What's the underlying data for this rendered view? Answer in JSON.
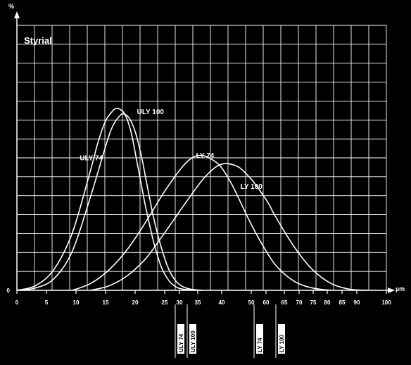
{
  "chart_data": {
    "type": "line",
    "title": "Styrial",
    "ylabel": "%",
    "xlabel": "µm",
    "xlim": [
      0,
      100
    ],
    "ylim": [
      0,
      23
    ],
    "grid": true,
    "x_ticks": [
      "0",
      "5",
      "10",
      "15",
      "20",
      "25",
      "30",
      "35",
      "40",
      "50",
      "60",
      "65",
      "70",
      "75",
      "80",
      "85",
      "90",
      "100"
    ],
    "y_ticks": [
      "0"
    ],
    "series": [
      {
        "name": "ULY 74",
        "label_x": 17.0,
        "label_y": 11.3,
        "x": [
          0,
          5,
          10,
          15,
          20,
          22,
          24,
          26,
          27,
          28,
          29,
          30,
          31,
          32,
          33,
          34,
          35,
          37,
          39,
          41,
          43,
          45,
          48
        ],
        "y": [
          0,
          0.4,
          1.8,
          5.0,
          10.5,
          12.9,
          14.7,
          15.6,
          15.8,
          15.7,
          15.4,
          14.7,
          13.6,
          12.0,
          10.3,
          8.6,
          7.0,
          4.2,
          2.1,
          0.9,
          0.3,
          0.1,
          0
        ]
      },
      {
        "name": "ULY 100",
        "label_x": 32.5,
        "label_y": 15.3,
        "x": [
          0,
          5,
          10,
          15,
          20,
          24,
          26,
          28,
          29,
          30,
          31,
          32,
          33,
          34,
          35,
          36,
          37,
          39,
          41,
          43,
          45,
          47,
          50
        ],
        "y": [
          0,
          0.2,
          1.0,
          3.4,
          8.2,
          12.5,
          14.3,
          15.2,
          15.3,
          15.1,
          14.6,
          13.8,
          12.6,
          11.2,
          9.5,
          7.9,
          6.3,
          3.8,
          1.9,
          0.8,
          0.3,
          0.1,
          0
        ]
      },
      {
        "name": "LY 74",
        "label_x": 48.5,
        "label_y": 11.5,
        "x": [
          15,
          20,
          25,
          30,
          35,
          40,
          45,
          48,
          50,
          52,
          55,
          58,
          60,
          63,
          66,
          70,
          75,
          80,
          85
        ],
        "y": [
          0,
          0.6,
          1.8,
          3.6,
          6.0,
          8.6,
          10.8,
          11.6,
          11.7,
          11.5,
          10.8,
          9.3,
          8.0,
          6.0,
          4.2,
          2.2,
          0.8,
          0.2,
          0
        ]
      },
      {
        "name": "LY 100",
        "label_x": 60.5,
        "label_y": 8.8,
        "x": [
          20,
          25,
          30,
          35,
          40,
          45,
          50,
          53,
          55,
          57,
          60,
          63,
          65,
          68,
          70,
          75,
          80,
          85,
          90,
          95
        ],
        "y": [
          0,
          0.4,
          1.3,
          2.8,
          5.0,
          7.3,
          9.5,
          10.5,
          10.9,
          11.0,
          10.7,
          9.8,
          9.0,
          7.6,
          6.4,
          3.8,
          1.8,
          0.6,
          0.1,
          0
        ]
      }
    ],
    "markers": [
      {
        "x": 28,
        "labels": [
          "ULY 74"
        ]
      },
      {
        "x": 30,
        "labels": [
          "ULY 100"
        ]
      },
      {
        "x": 53,
        "labels": [
          "LY 74"
        ]
      },
      {
        "x": 57,
        "labels": [
          "LY 100"
        ]
      }
    ]
  }
}
